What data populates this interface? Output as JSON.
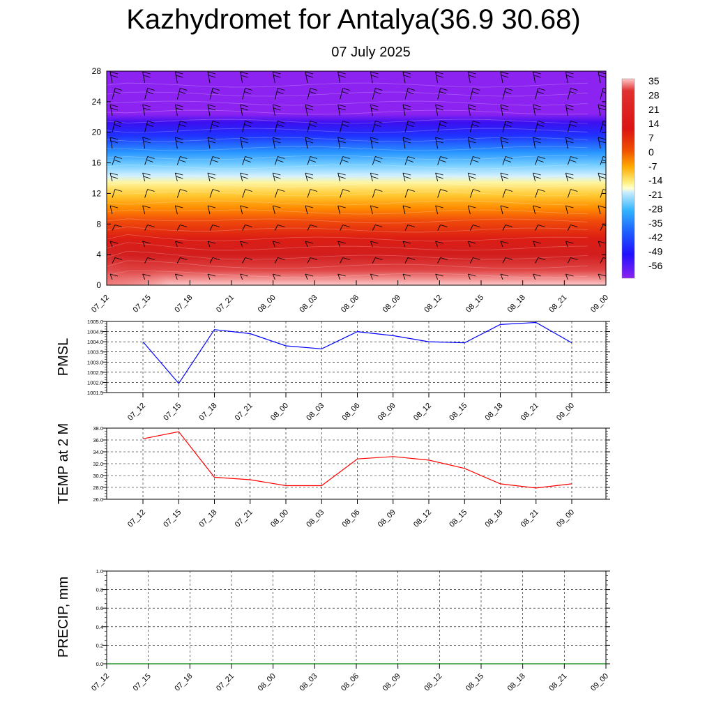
{
  "title": "Kazhydromet for Antalya(36.9 30.68)",
  "subtitle": "07 July 2025",
  "chart_data": [
    {
      "type": "heatmap",
      "name": "temperature-height-section",
      "x_ticks": [
        "07_12",
        "07_15",
        "07_18",
        "07_21",
        "08_00",
        "08_03",
        "08_06",
        "08_09",
        "08_12",
        "08_15",
        "08_18",
        "08_21",
        "09_00"
      ],
      "y_ticks": [
        "0",
        "4",
        "8",
        "12",
        "16",
        "20",
        "24",
        "28"
      ],
      "ylim": [
        0,
        28
      ],
      "colorbar_labels": [
        "35",
        "28",
        "21",
        "14",
        "7",
        "0",
        "-7",
        "-14",
        "-21",
        "-28",
        "-35",
        "-42",
        "-49",
        "-56"
      ],
      "colors": {
        "hot": "#ffc8c8",
        "warm": "#d21e1e",
        "orange": "#ff7800",
        "yellow": "#ffef70",
        "cyan": "#32b4ff",
        "blue": "#2020ff",
        "violet": "#8c23f0"
      },
      "wind_barbs": true
    },
    {
      "type": "line",
      "ylabel": "PMSL",
      "x_ticks": [
        "07_12",
        "07_15",
        "07_18",
        "07_21",
        "08_00",
        "08_03",
        "08_06",
        "08_09",
        "08_12",
        "08_15",
        "08_18",
        "08_21",
        "09_00"
      ],
      "y_ticks": [
        "1001.5",
        "1002.0",
        "1002.5",
        "1003.0",
        "1003.5",
        "1004.0",
        "1004.5",
        "1005.0"
      ],
      "ylim": [
        1001.5,
        1005.0
      ],
      "values": [
        1004.0,
        1001.95,
        1004.6,
        1004.4,
        1003.8,
        1003.65,
        1004.5,
        1004.3,
        1004.0,
        1003.95,
        1004.85,
        1004.95,
        1003.95
      ],
      "color": "#0000ff",
      "grid": true
    },
    {
      "type": "line",
      "ylabel": "TEMP at 2 M",
      "x_ticks": [
        "07_12",
        "07_15",
        "07_18",
        "07_21",
        "08_00",
        "08_03",
        "08_06",
        "08_09",
        "08_12",
        "08_15",
        "08_18",
        "08_21",
        "09_00"
      ],
      "y_ticks": [
        "26.0",
        "28.0",
        "30.0",
        "32.0",
        "34.0",
        "36.0",
        "38.0"
      ],
      "ylim": [
        26.0,
        38.0
      ],
      "values": [
        36.2,
        37.4,
        29.7,
        29.3,
        28.3,
        28.3,
        32.8,
        33.2,
        32.6,
        31.2,
        28.6,
        27.9,
        28.6
      ],
      "color": "#ff0000",
      "grid": true
    },
    {
      "type": "line",
      "ylabel": "PRECIP, mm",
      "x_ticks": [
        "07_12",
        "07_15",
        "07_18",
        "07_21",
        "08_00",
        "08_03",
        "08_06",
        "08_09",
        "08_12",
        "08_15",
        "08_18",
        "08_21",
        "09_00"
      ],
      "y_ticks": [
        "0.0",
        "0.2",
        "0.4",
        "0.6",
        "0.8",
        "1.0"
      ],
      "ylim": [
        0.0,
        1.0
      ],
      "values": [
        0,
        0,
        0,
        0,
        0,
        0,
        0,
        0,
        0,
        0,
        0,
        0,
        0
      ],
      "color": "#008000",
      "grid": true
    }
  ]
}
